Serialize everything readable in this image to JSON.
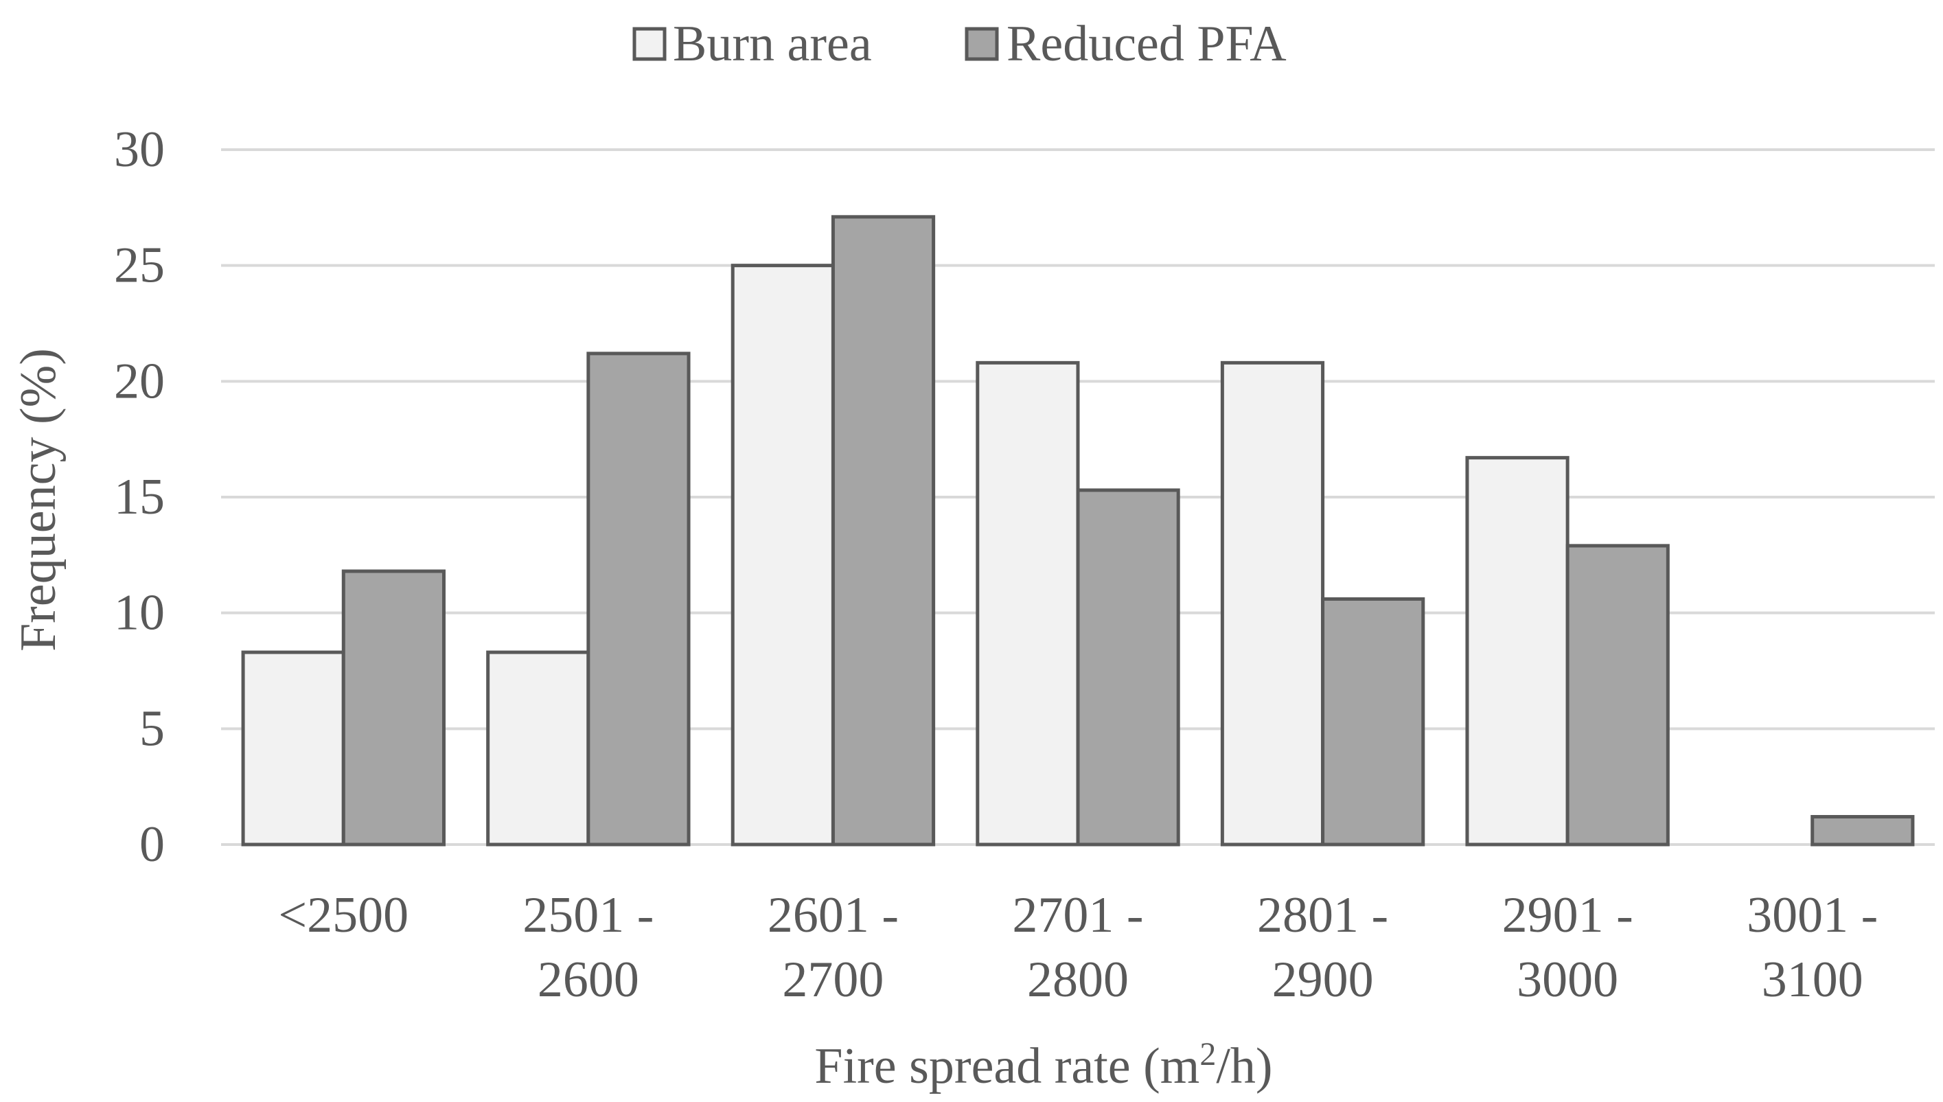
{
  "chart_data": {
    "type": "bar",
    "categories": [
      [
        "<2500"
      ],
      [
        "2501 -",
        "2600"
      ],
      [
        "2601 -",
        "2700"
      ],
      [
        "2701 -",
        "2800"
      ],
      [
        "2801 -",
        "2900"
      ],
      [
        "2901 -",
        "3000"
      ],
      [
        "3001 -",
        "3100"
      ]
    ],
    "series": [
      {
        "name": "Burn area",
        "color": "#f2f2f2",
        "values": [
          8.3,
          8.3,
          25.0,
          20.8,
          20.8,
          16.7,
          0
        ]
      },
      {
        "name": "Reduced PFA",
        "color": "#a5a5a5",
        "values": [
          11.8,
          21.2,
          27.1,
          15.3,
          10.6,
          12.9,
          1.2
        ]
      }
    ],
    "title": "",
    "xlabel": {
      "main": "Fire spread rate (m",
      "sup": "2",
      "rest": "/h)"
    },
    "ylabel": "Frequency (%)",
    "ylim": [
      0,
      30
    ],
    "yticks": [
      0,
      5,
      10,
      15,
      20,
      25,
      30
    ],
    "grid": true,
    "legend_position": "top-center"
  }
}
